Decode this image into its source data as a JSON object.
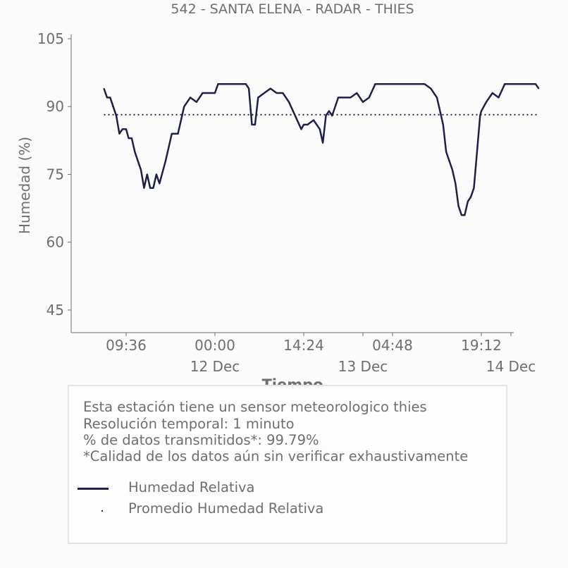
{
  "title": "542 - SANTA ELENA - RADAR - THIES",
  "chart_data": {
    "type": "line",
    "xlabel": "Tiempo",
    "ylabel": "Humedad (%)",
    "ylim": [
      40,
      105
    ],
    "yticks": [
      45,
      60,
      75,
      90,
      105
    ],
    "x_tick_labels": [
      "09:36",
      "00:00",
      "14:24",
      "04:48",
      "19:12"
    ],
    "x_date_labels": [
      "12 Dec",
      "13 Dec",
      "14 Dec"
    ],
    "series": [
      {
        "name": "Humedad Relativa",
        "style": "solid",
        "color": "#1e2047",
        "points": [
          [
            "11 Dec 06:00",
            94
          ],
          [
            "11 Dec 06:30",
            92
          ],
          [
            "11 Dec 07:00",
            92
          ],
          [
            "11 Dec 07:30",
            90
          ],
          [
            "11 Dec 08:00",
            88
          ],
          [
            "11 Dec 08:30",
            84
          ],
          [
            "11 Dec 09:00",
            85
          ],
          [
            "11 Dec 09:36",
            85
          ],
          [
            "11 Dec 10:00",
            83
          ],
          [
            "11 Dec 10:30",
            83
          ],
          [
            "11 Dec 11:00",
            80
          ],
          [
            "11 Dec 11:30",
            78
          ],
          [
            "11 Dec 12:00",
            76
          ],
          [
            "11 Dec 12:30",
            72
          ],
          [
            "11 Dec 13:00",
            75
          ],
          [
            "11 Dec 13:30",
            72
          ],
          [
            "11 Dec 14:00",
            72
          ],
          [
            "11 Dec 14:30",
            75
          ],
          [
            "11 Dec 15:00",
            73
          ],
          [
            "11 Dec 16:00",
            78
          ],
          [
            "11 Dec 16:30",
            81
          ],
          [
            "11 Dec 17:00",
            84
          ],
          [
            "11 Dec 18:00",
            84
          ],
          [
            "11 Dec 19:00",
            90
          ],
          [
            "11 Dec 20:00",
            92
          ],
          [
            "11 Dec 21:00",
            91
          ],
          [
            "11 Dec 22:00",
            93
          ],
          [
            "11 Dec 23:00",
            93
          ],
          [
            "12 Dec 00:00",
            93
          ],
          [
            "12 Dec 00:30",
            95
          ],
          [
            "12 Dec 02:00",
            95
          ],
          [
            "12 Dec 03:00",
            95
          ],
          [
            "12 Dec 05:00",
            95
          ],
          [
            "12 Dec 05:30",
            94
          ],
          [
            "12 Dec 06:00",
            86
          ],
          [
            "12 Dec 06:30",
            86
          ],
          [
            "12 Dec 07:00",
            92
          ],
          [
            "12 Dec 08:00",
            93
          ],
          [
            "12 Dec 09:00",
            94
          ],
          [
            "12 Dec 10:00",
            93
          ],
          [
            "12 Dec 11:00",
            93
          ],
          [
            "12 Dec 12:00",
            91
          ],
          [
            "12 Dec 13:00",
            88
          ],
          [
            "12 Dec 14:00",
            85
          ],
          [
            "12 Dec 14:24",
            86
          ],
          [
            "12 Dec 15:00",
            86
          ],
          [
            "12 Dec 16:00",
            87
          ],
          [
            "12 Dec 16:30",
            86
          ],
          [
            "12 Dec 17:00",
            85
          ],
          [
            "12 Dec 17:30",
            82
          ],
          [
            "12 Dec 18:00",
            88
          ],
          [
            "12 Dec 18:30",
            89
          ],
          [
            "12 Dec 19:00",
            88
          ],
          [
            "12 Dec 20:00",
            92
          ],
          [
            "12 Dec 21:00",
            92
          ],
          [
            "12 Dec 22:00",
            92
          ],
          [
            "12 Dec 23:00",
            93
          ],
          [
            "13 Dec 00:00",
            91
          ],
          [
            "13 Dec 01:00",
            92
          ],
          [
            "13 Dec 02:00",
            95
          ],
          [
            "13 Dec 04:00",
            95
          ],
          [
            "13 Dec 04:48",
            95
          ],
          [
            "13 Dec 06:00",
            95
          ],
          [
            "13 Dec 08:00",
            95
          ],
          [
            "13 Dec 10:00",
            95
          ],
          [
            "13 Dec 11:00",
            94
          ],
          [
            "13 Dec 12:00",
            92
          ],
          [
            "13 Dec 12:30",
            89
          ],
          [
            "13 Dec 13:00",
            86
          ],
          [
            "13 Dec 13:30",
            80
          ],
          [
            "13 Dec 14:00",
            78
          ],
          [
            "13 Dec 14:30",
            76
          ],
          [
            "13 Dec 15:00",
            73
          ],
          [
            "13 Dec 15:30",
            68
          ],
          [
            "13 Dec 16:00",
            66
          ],
          [
            "13 Dec 16:30",
            66
          ],
          [
            "13 Dec 17:00",
            69
          ],
          [
            "13 Dec 17:30",
            70
          ],
          [
            "13 Dec 18:00",
            72
          ],
          [
            "13 Dec 18:30",
            80
          ],
          [
            "13 Dec 19:00",
            88
          ],
          [
            "13 Dec 19:12",
            89
          ],
          [
            "13 Dec 20:00",
            91
          ],
          [
            "13 Dec 21:00",
            93
          ],
          [
            "13 Dec 22:00",
            92
          ],
          [
            "13 Dec 23:00",
            95
          ],
          [
            "14 Dec 00:00",
            95
          ],
          [
            "14 Dec 01:00",
            95
          ],
          [
            "14 Dec 02:00",
            95
          ],
          [
            "14 Dec 03:00",
            95
          ],
          [
            "14 Dec 04:00",
            95
          ],
          [
            "14 Dec 04:30",
            94
          ]
        ]
      },
      {
        "name": "Promedio Humedad Relativa",
        "style": "dotted",
        "color": "#1e2047",
        "points": [
          [
            "11 Dec 06:00",
            88.2
          ],
          [
            "14 Dec 04:30",
            88.2
          ]
        ]
      }
    ],
    "grid": false,
    "legend_position": "bottom"
  },
  "info": {
    "lines": [
      "Esta estación tiene un sensor meteorologico thies",
      "Resolución temporal: 1 minuto",
      "% de datos transmitidos*: 99.79%",
      "*Calidad de los datos aún sin verificar exhaustivamente"
    ]
  }
}
